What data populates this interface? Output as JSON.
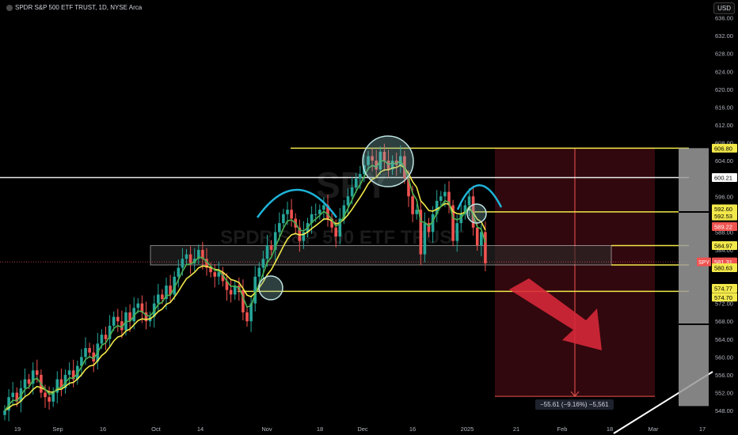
{
  "header": {
    "title": "SPDR S&P 500 ETF TRUST, 1D, NYSE Arca"
  },
  "currency": "USD",
  "watermark": {
    "ticker": "SPY",
    "name": "SPDR S&P 500 ETF TRUST"
  },
  "measure_label": "−55.61 (−9.16%) −5,561",
  "colors": {
    "up": "#26a69a",
    "down": "#ef5350",
    "ema_fast": "#4caf50",
    "ema_slow": "#f2e84a",
    "level": "#f2e84a",
    "arc": "#1fb3d8",
    "white_line": "#e8e8e8",
    "zone": "#5a0f18",
    "arrow": "#d62839"
  },
  "chart_data": {
    "type": "candlestick",
    "ylim": [
      545,
      640
    ],
    "y_ticks": [
      548,
      552,
      556,
      560,
      564,
      568,
      572,
      576,
      580,
      584,
      588,
      592,
      596,
      600,
      604,
      608,
      612,
      616,
      620,
      624,
      628,
      632,
      636
    ],
    "x_tick_labels": [
      "19",
      "Sep",
      "16",
      "Oct",
      "14",
      "Nov",
      "18",
      "Dec",
      "16",
      "2025",
      "21",
      "Feb",
      "18",
      "Mar",
      "17"
    ],
    "price_labels": [
      {
        "value": "606.80",
        "style": "level"
      },
      {
        "value": "600.21",
        "style": "white"
      },
      {
        "value": "592.60",
        "style": "level"
      },
      {
        "value": "592.53",
        "style": "level"
      },
      {
        "value": "589.22",
        "style": "down"
      },
      {
        "value": "584.97",
        "style": "level"
      },
      {
        "value": "581.31",
        "style": "down",
        "ticker": "SPY"
      },
      {
        "value": "580.63",
        "style": "level"
      },
      {
        "value": "574.77",
        "style": "level"
      },
      {
        "value": "574.70",
        "style": "level"
      }
    ],
    "horizontal_levels": [
      606.8,
      600.21,
      592.53,
      584.97,
      580.63,
      574.7
    ],
    "support_zone": [
      580.63,
      584.97
    ],
    "target_zone": [
      551.19,
      606.8
    ],
    "closes": [
      548,
      551,
      552,
      550,
      553,
      555,
      554,
      557,
      556,
      552,
      551,
      550,
      552,
      555,
      553,
      556,
      557,
      555,
      558,
      560,
      562,
      561,
      559,
      563,
      565,
      564,
      567,
      569,
      568,
      566,
      570,
      568,
      571,
      572,
      570,
      568,
      569,
      572,
      574,
      573,
      576,
      574,
      578,
      580,
      582,
      583,
      581,
      582,
      584,
      582,
      580,
      579,
      578,
      579,
      577,
      575,
      574,
      576,
      575,
      570,
      568,
      572,
      578,
      580,
      582,
      585,
      584,
      588,
      590,
      592,
      593,
      591,
      589,
      586,
      588,
      590,
      592,
      592,
      593,
      594,
      591,
      589,
      587,
      591,
      594,
      596,
      598,
      600,
      601,
      603,
      605,
      604,
      602,
      606,
      604,
      602,
      604,
      603,
      605,
      600,
      596,
      592,
      593,
      583,
      590,
      588,
      592,
      595,
      596,
      597,
      594,
      586,
      590,
      592,
      594,
      596,
      589,
      585,
      588,
      581
    ]
  }
}
